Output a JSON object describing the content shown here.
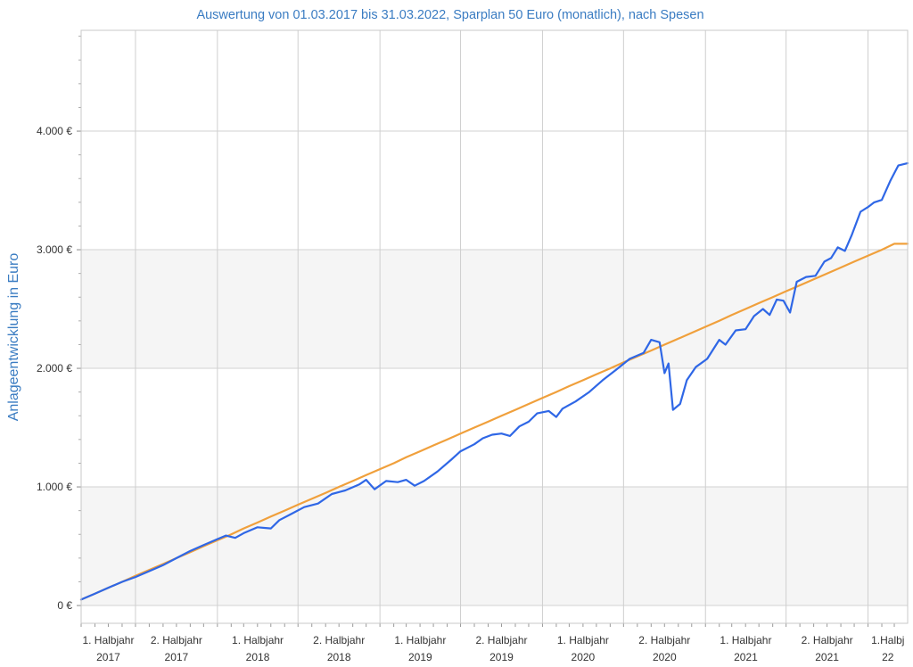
{
  "chart_data": {
    "type": "line",
    "title": "Auswertung von 01.03.2017 bis 31.03.2022, Sparplan 50 Euro (monatlich), nach Spesen",
    "xlabel": "",
    "ylabel": "Anlageentwicklung  in Euro",
    "ylim": [
      -150,
      4850
    ],
    "xlim": [
      "2017-03-01",
      "2022-03-31"
    ],
    "grid": true,
    "legend": "none",
    "y_ticks": [
      {
        "value": 0,
        "label": "0 €"
      },
      {
        "value": 1000,
        "label": "1.000 €"
      },
      {
        "value": 2000,
        "label": "2.000 €"
      },
      {
        "value": 3000,
        "label": "3.000 €"
      },
      {
        "value": 4000,
        "label": "4.000 €"
      }
    ],
    "x_ticks": [
      {
        "date": "2017-03-01",
        "line1": "1. Halbjahr",
        "line2": "2017"
      },
      {
        "date": "2017-07-01",
        "line1": "2. Halbjahr",
        "line2": "2017"
      },
      {
        "date": "2018-01-01",
        "line1": "1. Halbjahr",
        "line2": "2018"
      },
      {
        "date": "2018-07-01",
        "line1": "2. Halbjahr",
        "line2": "2018"
      },
      {
        "date": "2019-01-01",
        "line1": "1. Halbjahr",
        "line2": "2019"
      },
      {
        "date": "2019-07-01",
        "line1": "2. Halbjahr",
        "line2": "2019"
      },
      {
        "date": "2020-01-01",
        "line1": "1. Halbjahr",
        "line2": "2020"
      },
      {
        "date": "2020-07-01",
        "line1": "2. Halbjahr",
        "line2": "2020"
      },
      {
        "date": "2021-01-01",
        "line1": "1. Halbjahr",
        "line2": "2021"
      },
      {
        "date": "2021-07-01",
        "line1": "2. Halbjahr",
        "line2": "2021"
      },
      {
        "date": "2022-01-01",
        "line1": "1.Halbj",
        "line2": "22"
      }
    ],
    "series": [
      {
        "color": "#2f67e6",
        "points": [
          [
            "2017-03-01",
            50
          ],
          [
            "2017-04-01",
            100
          ],
          [
            "2017-05-01",
            150
          ],
          [
            "2017-06-01",
            200
          ],
          [
            "2017-07-01",
            240
          ],
          [
            "2017-08-01",
            290
          ],
          [
            "2017-09-01",
            340
          ],
          [
            "2017-10-01",
            400
          ],
          [
            "2017-11-01",
            460
          ],
          [
            "2017-12-01",
            510
          ],
          [
            "2018-01-01",
            560
          ],
          [
            "2018-01-20",
            590
          ],
          [
            "2018-02-10",
            570
          ],
          [
            "2018-03-01",
            610
          ],
          [
            "2018-04-01",
            660
          ],
          [
            "2018-05-01",
            650
          ],
          [
            "2018-05-20",
            720
          ],
          [
            "2018-06-15",
            770
          ],
          [
            "2018-07-15",
            830
          ],
          [
            "2018-08-15",
            860
          ],
          [
            "2018-09-15",
            940
          ],
          [
            "2018-10-15",
            970
          ],
          [
            "2018-11-15",
            1020
          ],
          [
            "2018-12-01",
            1060
          ],
          [
            "2018-12-20",
            980
          ],
          [
            "2019-01-15",
            1050
          ],
          [
            "2019-02-10",
            1040
          ],
          [
            "2019-03-01",
            1060
          ],
          [
            "2019-03-20",
            1010
          ],
          [
            "2019-04-10",
            1050
          ],
          [
            "2019-05-10",
            1130
          ],
          [
            "2019-06-10",
            1230
          ],
          [
            "2019-07-01",
            1300
          ],
          [
            "2019-08-01",
            1360
          ],
          [
            "2019-08-20",
            1410
          ],
          [
            "2019-09-10",
            1440
          ],
          [
            "2019-10-01",
            1450
          ],
          [
            "2019-10-20",
            1430
          ],
          [
            "2019-11-10",
            1510
          ],
          [
            "2019-12-01",
            1550
          ],
          [
            "2019-12-20",
            1620
          ],
          [
            "2020-01-15",
            1640
          ],
          [
            "2020-02-01",
            1590
          ],
          [
            "2020-02-15",
            1660
          ],
          [
            "2020-03-15",
            1720
          ],
          [
            "2020-04-15",
            1800
          ],
          [
            "2020-05-15",
            1900
          ],
          [
            "2020-06-15",
            1990
          ],
          [
            "2020-07-15",
            2080
          ],
          [
            "2020-08-15",
            2130
          ],
          [
            "2020-09-01",
            2240
          ],
          [
            "2020-09-20",
            2220
          ],
          [
            "2020-10-01",
            1960
          ],
          [
            "2020-10-10",
            2040
          ],
          [
            "2020-10-20",
            1650
          ],
          [
            "2020-11-05",
            1700
          ],
          [
            "2020-11-20",
            1900
          ],
          [
            "2020-12-10",
            2010
          ],
          [
            "2021-01-05",
            2080
          ],
          [
            "2021-02-01",
            2240
          ],
          [
            "2021-02-15",
            2200
          ],
          [
            "2021-03-10",
            2320
          ],
          [
            "2021-04-01",
            2330
          ],
          [
            "2021-04-20",
            2440
          ],
          [
            "2021-05-10",
            2500
          ],
          [
            "2021-05-25",
            2450
          ],
          [
            "2021-06-10",
            2580
          ],
          [
            "2021-06-25",
            2570
          ],
          [
            "2021-07-10",
            2470
          ],
          [
            "2021-07-25",
            2730
          ],
          [
            "2021-08-15",
            2770
          ],
          [
            "2021-09-05",
            2780
          ],
          [
            "2021-09-25",
            2900
          ],
          [
            "2021-10-10",
            2930
          ],
          [
            "2021-10-25",
            3020
          ],
          [
            "2021-11-10",
            2990
          ],
          [
            "2021-11-25",
            3120
          ],
          [
            "2021-12-15",
            3320
          ],
          [
            "2022-01-01",
            3360
          ],
          [
            "2022-01-15",
            3400
          ],
          [
            "2022-02-01",
            3420
          ],
          [
            "2022-02-20",
            3580
          ],
          [
            "2022-03-10",
            3710
          ],
          [
            "2022-03-31",
            3730
          ]
        ]
      },
      {
        "color": "#f0a03c",
        "points": [
          [
            "2017-03-01",
            50
          ],
          [
            "2017-04-01",
            100
          ],
          [
            "2017-05-01",
            150
          ],
          [
            "2017-06-01",
            200
          ],
          [
            "2017-07-01",
            250
          ],
          [
            "2017-08-01",
            300
          ],
          [
            "2017-09-01",
            350
          ],
          [
            "2017-10-01",
            400
          ],
          [
            "2017-11-01",
            450
          ],
          [
            "2017-12-01",
            500
          ],
          [
            "2018-01-01",
            550
          ],
          [
            "2018-02-01",
            600
          ],
          [
            "2018-03-01",
            650
          ],
          [
            "2018-04-01",
            700
          ],
          [
            "2018-05-01",
            750
          ],
          [
            "2018-06-01",
            800
          ],
          [
            "2018-07-01",
            850
          ],
          [
            "2018-08-01",
            900
          ],
          [
            "2018-09-01",
            950
          ],
          [
            "2018-10-01",
            1000
          ],
          [
            "2018-11-01",
            1050
          ],
          [
            "2018-12-01",
            1100
          ],
          [
            "2019-01-01",
            1150
          ],
          [
            "2019-02-01",
            1200
          ],
          [
            "2019-03-01",
            1250
          ],
          [
            "2019-04-01",
            1300
          ],
          [
            "2019-05-01",
            1350
          ],
          [
            "2019-06-01",
            1400
          ],
          [
            "2019-07-01",
            1450
          ],
          [
            "2019-08-01",
            1500
          ],
          [
            "2019-09-01",
            1550
          ],
          [
            "2019-10-01",
            1600
          ],
          [
            "2019-11-01",
            1650
          ],
          [
            "2019-12-01",
            1700
          ],
          [
            "2020-01-01",
            1750
          ],
          [
            "2020-02-01",
            1800
          ],
          [
            "2020-03-01",
            1850
          ],
          [
            "2020-04-01",
            1900
          ],
          [
            "2020-05-01",
            1950
          ],
          [
            "2020-06-01",
            2000
          ],
          [
            "2020-07-01",
            2050
          ],
          [
            "2020-08-01",
            2100
          ],
          [
            "2020-09-01",
            2150
          ],
          [
            "2020-10-01",
            2200
          ],
          [
            "2020-11-01",
            2250
          ],
          [
            "2020-12-01",
            2300
          ],
          [
            "2021-01-01",
            2350
          ],
          [
            "2021-02-01",
            2400
          ],
          [
            "2021-03-01",
            2450
          ],
          [
            "2021-04-01",
            2500
          ],
          [
            "2021-05-01",
            2550
          ],
          [
            "2021-06-01",
            2600
          ],
          [
            "2021-07-01",
            2650
          ],
          [
            "2021-08-01",
            2700
          ],
          [
            "2021-09-01",
            2750
          ],
          [
            "2021-10-01",
            2800
          ],
          [
            "2021-11-01",
            2850
          ],
          [
            "2021-12-01",
            2900
          ],
          [
            "2022-01-01",
            2950
          ],
          [
            "2022-02-01",
            3000
          ],
          [
            "2022-03-01",
            3050
          ],
          [
            "2022-03-31",
            3050
          ]
        ]
      }
    ]
  }
}
